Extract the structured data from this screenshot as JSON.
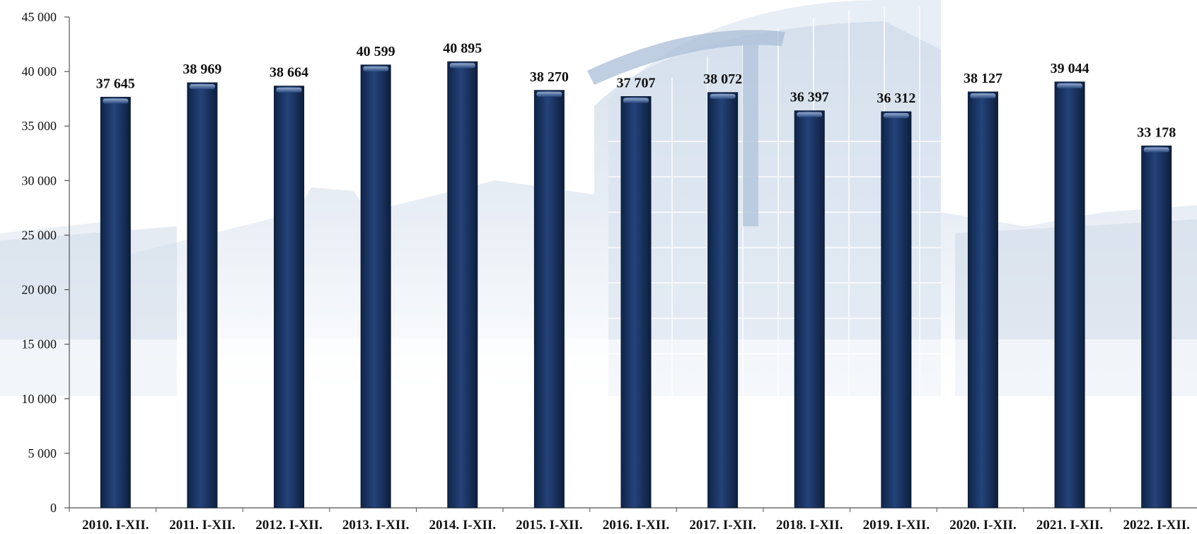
{
  "chart_data": {
    "type": "bar",
    "title": "",
    "xlabel": "",
    "ylabel": "",
    "categories": [
      "2010. I-XII.",
      "2011. I-XII.",
      "2012. I-XII.",
      "2013. I-XII.",
      "2014. I-XII.",
      "2015. I-XII.",
      "2016. I-XII.",
      "2017. I-XII.",
      "2018. I-XII.",
      "2019. I-XII.",
      "2020. I-XII.",
      "2021. I-XII.",
      "2022. I-XII."
    ],
    "values": [
      37645,
      38969,
      38664,
      40599,
      40895,
      38270,
      37707,
      38072,
      36397,
      36312,
      38127,
      39044,
      33178
    ],
    "value_labels": [
      "37 645",
      "38 969",
      "38 664",
      "40 599",
      "40 895",
      "38 270",
      "37 707",
      "38 072",
      "36 397",
      "36 312",
      "38 127",
      "39 044",
      "33 178"
    ],
    "ylim": [
      0,
      45000
    ],
    "yticks": [
      0,
      5000,
      10000,
      15000,
      20000,
      25000,
      30000,
      35000,
      40000,
      45000
    ],
    "ytick_labels": [
      "0",
      "5 000",
      "10 000",
      "15 000",
      "20 000",
      "25 000",
      "30 000",
      "35 000",
      "40 000",
      "45 000"
    ],
    "grid": false,
    "legend": "none",
    "bar_color": "#1b355e",
    "background": "faded light-blue building photograph"
  }
}
